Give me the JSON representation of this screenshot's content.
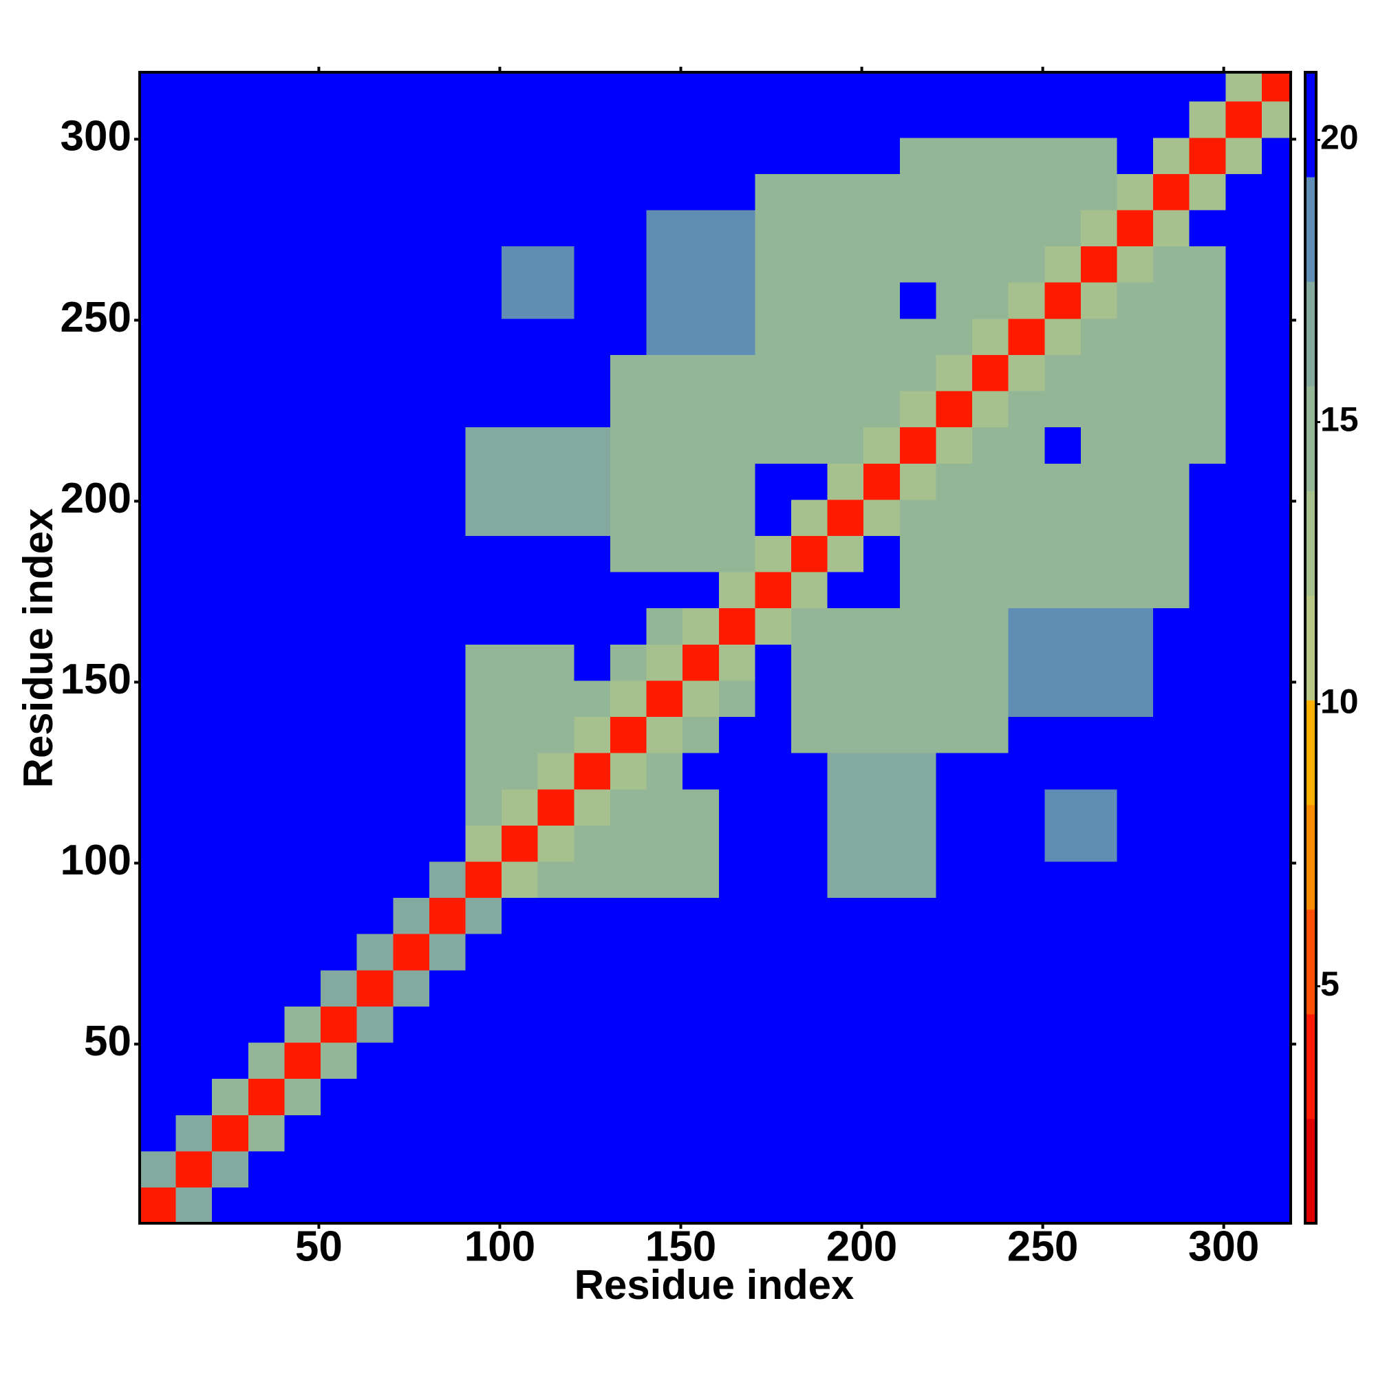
{
  "chart_data": {
    "type": "heatmap",
    "xlabel": "Residue index",
    "ylabel": "Residue index",
    "xbins": [
      0.5,
      10.5,
      20.5,
      30.5,
      40.5,
      50.5,
      60.5,
      70.5,
      80.5,
      90.5,
      100.5,
      110.5,
      120.5,
      130.5,
      140.5,
      150.5,
      160.5,
      170.5,
      180.5,
      190.5,
      200.5,
      210.5,
      220.5,
      230.5,
      240.5,
      250.5,
      260.5,
      270.5,
      280.5,
      290.5,
      300.5,
      310.5,
      318.5
    ],
    "ybins": [
      0.5,
      10.5,
      20.5,
      30.5,
      40.5,
      50.5,
      60.5,
      70.5,
      80.5,
      90.5,
      100.5,
      110.5,
      120.5,
      130.5,
      140.5,
      150.5,
      160.5,
      170.5,
      180.5,
      190.5,
      200.5,
      210.5,
      220.5,
      230.5,
      240.5,
      250.5,
      260.5,
      270.5,
      280.5,
      290.5,
      300.5,
      310.5,
      318.5
    ],
    "xlim": [
      0.5,
      318.5
    ],
    "ylim": [
      0.5,
      318.5
    ],
    "xticks": [
      50,
      100,
      150,
      200,
      250,
      300
    ],
    "yticks": [
      50,
      100,
      150,
      200,
      250,
      300
    ],
    "zlim": [
      0.8,
      21.2
    ],
    "zticks": [
      5,
      10,
      15,
      20
    ],
    "colorscale": [
      "#e00000",
      "#ff1a00",
      "#ff5000",
      "#ff8c00",
      "#ffb000",
      "#b9c784",
      "#a6c08e",
      "#93b697",
      "#84a99e",
      "#5f8db4",
      "#0000ff"
    ],
    "z": [
      [
        3,
        17,
        21,
        21,
        21,
        21,
        21,
        21,
        21,
        21,
        21,
        21,
        21,
        21,
        21,
        21,
        21,
        21,
        21,
        21,
        21,
        21,
        21,
        21,
        21,
        21,
        21,
        21,
        21,
        21,
        21,
        21
      ],
      [
        17,
        3,
        17,
        21,
        21,
        21,
        21,
        21,
        21,
        21,
        21,
        21,
        21,
        21,
        21,
        21,
        21,
        21,
        21,
        21,
        21,
        21,
        21,
        21,
        21,
        21,
        21,
        21,
        21,
        21,
        21,
        21
      ],
      [
        21,
        17,
        3,
        14,
        21,
        21,
        21,
        21,
        21,
        21,
        21,
        21,
        21,
        21,
        21,
        21,
        21,
        21,
        21,
        21,
        21,
        21,
        21,
        21,
        21,
        21,
        21,
        21,
        21,
        21,
        21,
        21
      ],
      [
        21,
        21,
        14,
        3,
        14,
        21,
        21,
        21,
        21,
        21,
        21,
        21,
        21,
        21,
        21,
        21,
        21,
        21,
        21,
        21,
        21,
        21,
        21,
        21,
        21,
        21,
        21,
        21,
        21,
        21,
        21,
        21
      ],
      [
        21,
        21,
        21,
        14,
        3,
        14,
        21,
        21,
        21,
        21,
        21,
        21,
        21,
        21,
        21,
        21,
        21,
        21,
        21,
        21,
        21,
        21,
        21,
        21,
        21,
        21,
        21,
        21,
        21,
        21,
        21,
        21
      ],
      [
        21,
        21,
        21,
        21,
        14,
        3,
        17,
        21,
        21,
        21,
        21,
        21,
        21,
        21,
        21,
        21,
        21,
        21,
        21,
        21,
        21,
        21,
        21,
        21,
        21,
        21,
        21,
        21,
        21,
        21,
        21,
        21
      ],
      [
        21,
        21,
        21,
        21,
        21,
        17,
        3,
        17,
        21,
        21,
        21,
        21,
        21,
        21,
        21,
        21,
        21,
        21,
        21,
        21,
        21,
        21,
        21,
        21,
        21,
        21,
        21,
        21,
        21,
        21,
        21,
        21
      ],
      [
        21,
        21,
        21,
        21,
        21,
        21,
        17,
        3,
        17,
        21,
        21,
        21,
        21,
        21,
        21,
        21,
        21,
        21,
        21,
        21,
        21,
        21,
        21,
        21,
        21,
        21,
        21,
        21,
        21,
        21,
        21,
        21
      ],
      [
        21,
        21,
        21,
        21,
        21,
        21,
        21,
        17,
        3,
        17,
        21,
        21,
        21,
        21,
        21,
        21,
        21,
        21,
        21,
        21,
        21,
        21,
        21,
        21,
        21,
        21,
        21,
        21,
        21,
        21,
        21,
        21
      ],
      [
        21,
        21,
        21,
        21,
        21,
        21,
        21,
        21,
        17,
        3,
        13,
        14,
        14,
        14,
        14,
        14,
        21,
        21,
        21,
        17,
        17,
        17,
        21,
        21,
        21,
        21,
        21,
        21,
        21,
        21,
        21,
        21
      ],
      [
        21,
        21,
        21,
        21,
        21,
        21,
        21,
        21,
        21,
        13,
        3,
        13,
        14,
        14,
        14,
        14,
        21,
        21,
        21,
        17,
        17,
        17,
        21,
        21,
        21,
        19,
        19,
        21,
        21,
        21,
        21,
        21
      ],
      [
        21,
        21,
        21,
        21,
        21,
        21,
        21,
        21,
        21,
        14,
        13,
        3,
        13,
        14,
        14,
        14,
        21,
        21,
        21,
        17,
        17,
        17,
        21,
        21,
        21,
        19,
        19,
        21,
        21,
        21,
        21,
        21
      ],
      [
        21,
        21,
        21,
        21,
        21,
        21,
        21,
        21,
        21,
        14,
        14,
        13,
        3,
        13,
        15,
        21,
        21,
        21,
        21,
        17,
        17,
        17,
        21,
        21,
        21,
        21,
        21,
        21,
        21,
        21,
        21,
        21
      ],
      [
        21,
        21,
        21,
        21,
        21,
        21,
        21,
        21,
        21,
        14,
        14,
        14,
        13,
        3,
        13,
        15,
        21,
        21,
        14,
        14,
        14,
        14,
        14,
        14,
        21,
        21,
        21,
        21,
        21,
        21,
        21,
        21
      ],
      [
        21,
        21,
        21,
        21,
        21,
        21,
        21,
        21,
        21,
        14,
        14,
        14,
        15,
        13,
        3,
        13,
        15,
        21,
        14,
        14,
        14,
        14,
        14,
        14,
        18,
        18,
        18,
        18,
        21,
        21,
        21,
        21
      ],
      [
        21,
        21,
        21,
        21,
        21,
        21,
        21,
        21,
        21,
        14,
        14,
        14,
        21,
        15,
        13,
        3,
        13,
        21,
        14,
        14,
        14,
        14,
        14,
        14,
        18,
        18,
        18,
        18,
        21,
        21,
        21,
        21
      ],
      [
        21,
        21,
        21,
        21,
        21,
        21,
        21,
        21,
        21,
        21,
        21,
        21,
        21,
        21,
        15,
        13,
        3,
        13,
        14,
        14,
        14,
        14,
        14,
        14,
        18,
        18,
        18,
        18,
        21,
        21,
        21,
        21
      ],
      [
        21,
        21,
        21,
        21,
        21,
        21,
        21,
        21,
        21,
        21,
        21,
        21,
        21,
        21,
        21,
        21,
        13,
        3,
        13,
        21,
        21,
        14,
        14,
        14,
        14,
        14,
        14,
        14,
        14,
        21,
        21,
        21
      ],
      [
        21,
        21,
        21,
        21,
        21,
        21,
        21,
        21,
        21,
        21,
        21,
        21,
        21,
        14,
        14,
        14,
        14,
        13,
        3,
        13,
        21,
        14,
        14,
        14,
        14,
        14,
        14,
        14,
        14,
        21,
        21,
        21
      ],
      [
        21,
        21,
        21,
        21,
        21,
        21,
        21,
        21,
        21,
        17,
        17,
        17,
        17,
        14,
        14,
        14,
        14,
        21,
        13,
        3,
        13,
        14,
        14,
        14,
        14,
        14,
        14,
        14,
        14,
        21,
        21,
        21
      ],
      [
        21,
        21,
        21,
        21,
        21,
        21,
        21,
        21,
        21,
        17,
        17,
        17,
        17,
        14,
        14,
        14,
        14,
        21,
        21,
        13,
        3,
        13,
        14,
        14,
        14,
        14,
        14,
        14,
        14,
        21,
        21,
        21
      ],
      [
        21,
        21,
        21,
        21,
        21,
        21,
        21,
        21,
        21,
        17,
        17,
        17,
        17,
        14,
        14,
        14,
        14,
        14,
        14,
        14,
        13,
        3,
        13,
        14,
        14,
        21,
        14,
        14,
        14,
        14,
        21,
        21
      ],
      [
        21,
        21,
        21,
        21,
        21,
        21,
        21,
        21,
        21,
        21,
        21,
        21,
        21,
        14,
        14,
        14,
        14,
        14,
        14,
        14,
        14,
        13,
        3,
        13,
        14,
        14,
        14,
        14,
        14,
        14,
        21,
        21
      ],
      [
        21,
        21,
        21,
        21,
        21,
        21,
        21,
        21,
        21,
        21,
        21,
        21,
        21,
        14,
        14,
        14,
        14,
        14,
        14,
        14,
        14,
        14,
        13,
        3,
        13,
        14,
        14,
        14,
        14,
        14,
        21,
        21
      ],
      [
        21,
        21,
        21,
        21,
        21,
        21,
        21,
        21,
        21,
        21,
        21,
        21,
        21,
        21,
        18,
        18,
        18,
        14,
        14,
        14,
        14,
        14,
        14,
        13,
        3,
        13,
        14,
        14,
        14,
        14,
        21,
        21
      ],
      [
        21,
        21,
        21,
        21,
        21,
        21,
        21,
        21,
        21,
        21,
        19,
        19,
        21,
        21,
        18,
        18,
        18,
        14,
        14,
        14,
        14,
        21,
        14,
        14,
        13,
        3,
        13,
        14,
        14,
        14,
        21,
        21
      ],
      [
        21,
        21,
        21,
        21,
        21,
        21,
        21,
        21,
        21,
        21,
        19,
        19,
        21,
        21,
        18,
        18,
        18,
        14,
        14,
        14,
        14,
        14,
        14,
        14,
        14,
        13,
        3,
        13,
        14,
        14,
        21,
        21
      ],
      [
        21,
        21,
        21,
        21,
        21,
        21,
        21,
        21,
        21,
        21,
        21,
        21,
        21,
        21,
        18,
        18,
        18,
        14,
        14,
        14,
        14,
        14,
        14,
        14,
        14,
        14,
        13,
        3,
        13,
        21,
        21,
        21
      ],
      [
        21,
        21,
        21,
        21,
        21,
        21,
        21,
        21,
        21,
        21,
        21,
        21,
        21,
        21,
        21,
        21,
        21,
        14,
        14,
        14,
        14,
        14,
        14,
        14,
        14,
        14,
        14,
        13,
        3,
        13,
        21,
        21
      ],
      [
        21,
        21,
        21,
        21,
        21,
        21,
        21,
        21,
        21,
        21,
        21,
        21,
        21,
        21,
        21,
        21,
        21,
        21,
        21,
        21,
        21,
        14,
        14,
        14,
        14,
        14,
        14,
        21,
        13,
        3,
        13,
        21
      ],
      [
        21,
        21,
        21,
        21,
        21,
        21,
        21,
        21,
        21,
        21,
        21,
        21,
        21,
        21,
        21,
        21,
        21,
        21,
        21,
        21,
        21,
        21,
        21,
        21,
        21,
        21,
        21,
        21,
        21,
        13,
        3,
        13
      ],
      [
        21,
        21,
        21,
        21,
        21,
        21,
        21,
        21,
        21,
        21,
        21,
        21,
        21,
        21,
        21,
        21,
        21,
        21,
        21,
        21,
        21,
        21,
        21,
        21,
        21,
        21,
        21,
        21,
        21,
        21,
        13,
        3
      ]
    ]
  }
}
